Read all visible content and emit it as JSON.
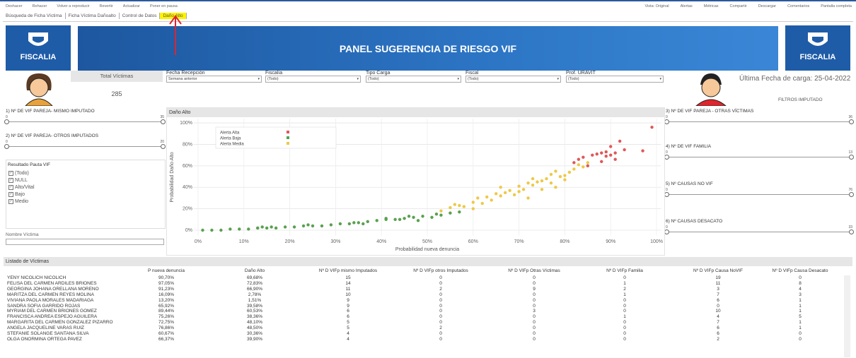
{
  "toolbar": {
    "left": [
      "Deshacer",
      "Rehacer",
      "Volver a reproducir",
      "Revertir",
      "Actualizar",
      "Poner en pausa"
    ],
    "right": [
      "Vista: Original",
      "Alertas",
      "Métricas",
      "Compartir",
      "Descargar",
      "Comentarios",
      "Pantalla completa"
    ]
  },
  "tabs": {
    "items": [
      "Búsqueda de Ficha Víctima",
      "Ficha Víctima Dañoalto",
      "Control de Datos",
      "Daño Alto"
    ],
    "active": 3
  },
  "header": {
    "logo_text": "FISCALIA",
    "title": "PANEL SUGERENCIA DE RIESGO VIF"
  },
  "summary": {
    "label": "Total Víctimas",
    "value": "285"
  },
  "filters": [
    {
      "label": "Fecha Recepción",
      "value": "Semana anterior"
    },
    {
      "label": "Fiscalía",
      "value": "(Todo)"
    },
    {
      "label": "Tipo Carga",
      "value": "(Todo)"
    },
    {
      "label": "Fiscal",
      "value": "(Todo)"
    },
    {
      "label": "Prof. URAVIT",
      "value": "(Todo)"
    }
  ],
  "last_load": "Última Fecha de carga: 25-04-2022",
  "imputado_filters_label": "FILTROS IMPUTADO",
  "sliders_left": [
    {
      "title": "1) Nº DE VIF PAREJA- MISMO IMPUTADO",
      "min": 0,
      "max": 35
    },
    {
      "title": "2) Nº DE VIF PAREJA- OTROS IMPUTADOS",
      "min": 0,
      "max": 20
    }
  ],
  "sliders_right": [
    {
      "title": "3) Nº DE VIF PAREJA - OTRAS VÍCTIMAS",
      "min": 0,
      "max": 36
    },
    {
      "title": "4) Nº DE VIF FAMILIA",
      "min": 0,
      "max": 13
    },
    {
      "title": "5) Nº CAUSAS NO VIF",
      "min": 0,
      "max": 76
    },
    {
      "title": "6) Nº CAUSAS DESACATO",
      "min": 0,
      "max": 33
    }
  ],
  "pauta": {
    "title": "Resultado Pauta VIF",
    "options": [
      "(Todo)",
      "NULL",
      "Alto/Vital",
      "Bajo",
      "Medio"
    ]
  },
  "name_filter": {
    "label": "Nombre Víctima"
  },
  "chart_data": {
    "type": "scatter",
    "title": "Daño Alto",
    "x_label": "Probabilidad nueva denuncia",
    "y_label": "Probabilidad Daño Alto",
    "xlim": [
      -1,
      101
    ],
    "ylim": [
      -5,
      104
    ],
    "xticks": [
      {
        "value": 0,
        "label": "0%"
      },
      {
        "value": 10,
        "label": "10%"
      },
      {
        "value": 20,
        "label": "20%"
      },
      {
        "value": 30,
        "label": "30%"
      },
      {
        "value": 40,
        "label": "40%"
      },
      {
        "value": 50,
        "label": "50%"
      },
      {
        "value": 60,
        "label": "60%"
      },
      {
        "value": 70,
        "label": "70%"
      },
      {
        "value": 80,
        "label": "80%"
      },
      {
        "value": 90,
        "label": "90%"
      },
      {
        "value": 100,
        "label": "100%"
      }
    ],
    "yticks": [
      {
        "value": 0,
        "label": "0%"
      },
      {
        "value": 20,
        "label": "20%"
      },
      {
        "value": 40,
        "label": "40%"
      },
      {
        "value": 60,
        "label": "60%"
      },
      {
        "value": 80,
        "label": "80%"
      },
      {
        "value": 100,
        "label": "100%"
      }
    ],
    "grid": true,
    "series": [
      {
        "name": "Alerta Alta",
        "color": "#e15759",
        "x": [
          82,
          83,
          84,
          86,
          87,
          88,
          89,
          89,
          90,
          90,
          91,
          91,
          92,
          93,
          97,
          99,
          85,
          88
        ],
        "values": [
          63,
          66,
          68,
          70,
          71,
          72,
          73,
          69,
          78,
          70,
          66,
          72,
          83,
          75,
          74,
          96,
          60,
          64
        ]
      },
      {
        "name": "Alerta Baja",
        "color": "#59a14f",
        "x": [
          1,
          3,
          5,
          7,
          9,
          11,
          13,
          15,
          17,
          19,
          21,
          23,
          25,
          27,
          29,
          31,
          33,
          35,
          37,
          39,
          41,
          43,
          45,
          47,
          49,
          51,
          53,
          55,
          57,
          14,
          24,
          34,
          44,
          52,
          16,
          13,
          36,
          46,
          48,
          41
        ],
        "values": [
          0,
          0,
          0,
          1,
          1,
          1,
          2,
          2,
          2,
          3,
          3,
          4,
          4,
          4,
          5,
          6,
          6,
          7,
          8,
          9,
          10,
          10,
          11,
          12,
          13,
          12,
          14,
          16,
          17,
          3,
          5,
          7,
          10,
          15,
          3,
          2,
          6,
          13,
          9,
          11
        ]
      },
      {
        "name": "Alerta Media",
        "color": "#edc948",
        "x": [
          53,
          55,
          56,
          58,
          60,
          61,
          62,
          64,
          65,
          66,
          66,
          68,
          69,
          70,
          71,
          72,
          73,
          73,
          75,
          75,
          76,
          77,
          77,
          78,
          79,
          80,
          81,
          82,
          83,
          84,
          85,
          60,
          63,
          67,
          70,
          74,
          78,
          80,
          57,
          72
        ],
        "values": [
          18,
          21,
          24,
          22,
          26,
          30,
          25,
          28,
          34,
          40,
          32,
          37,
          33,
          41,
          38,
          44,
          42,
          48,
          38,
          46,
          48,
          52,
          44,
          55,
          50,
          47,
          54,
          57,
          61,
          59,
          63,
          20,
          31,
          35,
          36,
          45,
          40,
          51,
          23,
          30
        ]
      }
    ]
  },
  "table": {
    "title": "Listado de Víctimas",
    "columns": [
      "P nueva denuncia",
      "Daño Alto",
      "Nº D VIFp mismo Imputados",
      "Nº D VIFp otros Imputados",
      "Nº D VIFp Otras Víctimas",
      "Nº D VIFp Familia",
      "Nº D VIFp Causa NoVIF",
      "Nº D VIFp Causa Desacato"
    ],
    "rows": [
      {
        "name": "YENY NICOLICH NICOLICH",
        "cells": [
          "90,70%",
          "69,68%",
          "15",
          "0",
          "0",
          "0",
          "19",
          "0"
        ]
      },
      {
        "name": "FELISA DEL CARMEN ARDILES BRIONES",
        "cells": [
          "97,05%",
          "72,83%",
          "14",
          "0",
          "0",
          "1",
          "11",
          "8"
        ]
      },
      {
        "name": "GEORGINA JOHANA ORELLANA MORENO",
        "cells": [
          "91,23%",
          "66,90%",
          "11",
          "2",
          "9",
          "2",
          "3",
          "4"
        ]
      },
      {
        "name": "MARITZA DEL CARMEN REYES MOLINA",
        "cells": [
          "16,09%",
          "2,78%",
          "10",
          "0",
          "0",
          "1",
          "7",
          "3"
        ]
      },
      {
        "name": "VIVIANA PAOLA MORALES MADARIAGA",
        "cells": [
          "13,20%",
          "1,51%",
          "9",
          "0",
          "0",
          "0",
          "6",
          "1"
        ]
      },
      {
        "name": "SANDRA SOFIA GARRIDO ROJAS",
        "cells": [
          "65,92%",
          "39,58%",
          "9",
          "0",
          "0",
          "0",
          "0",
          "1"
        ]
      },
      {
        "name": "MYRIAM DEL CARMEN BRIONES GOMEZ",
        "cells": [
          "89,44%",
          "60,53%",
          "6",
          "0",
          "3",
          "0",
          "10",
          "1"
        ]
      },
      {
        "name": "FRANCISCA ANDREA ESPEJO AGUILERA",
        "cells": [
          "75,26%",
          "38,36%",
          "6",
          "0",
          "0",
          "1",
          "4",
          "5"
        ]
      },
      {
        "name": "MARGARITA DEL CARMEN GONZALEZ PIZARRO",
        "cells": [
          "72,75%",
          "48,10%",
          "5",
          "0",
          "0",
          "0",
          "7",
          "1"
        ]
      },
      {
        "name": "ANGELA JACQUELINE VARAS RUIZ",
        "cells": [
          "76,86%",
          "48,50%",
          "5",
          "2",
          "0",
          "0",
          "6",
          "1"
        ]
      },
      {
        "name": "STEFANIE SOLANGE SANTANA SILVA",
        "cells": [
          "60,67%",
          "30,36%",
          "4",
          "0",
          "0",
          "0",
          "6",
          "0"
        ]
      },
      {
        "name": "OLGA ONORMINA ORTEGA PAVEZ",
        "cells": [
          "66,37%",
          "39,90%",
          "4",
          "0",
          "0",
          "0",
          "2",
          "0"
        ]
      }
    ]
  }
}
